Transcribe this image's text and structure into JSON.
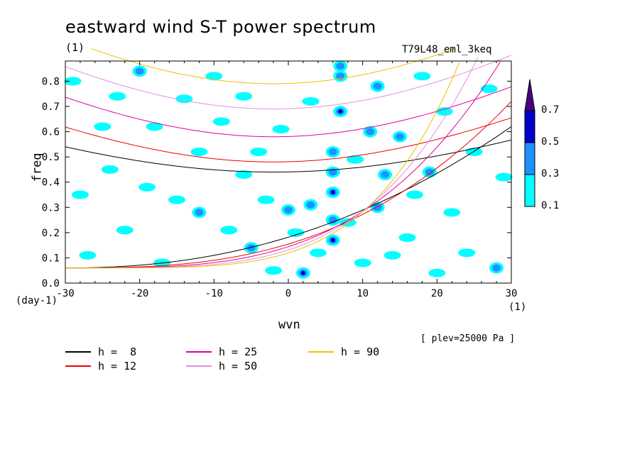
{
  "chart_data": {
    "type": "contour",
    "title": "eastward wind S-T power spectrum",
    "title_units": "(1)",
    "run_label": "T79L48_eml_3keq",
    "xlabel": "wvn",
    "ylabel": "freq",
    "x_units_left": "(day-1)",
    "x_units_right": "(1)",
    "level_note": "[ plev=25000 Pa ]",
    "xlim": [
      -30,
      30
    ],
    "ylim": [
      0,
      0.88
    ],
    "x_ticks": [
      -30,
      -20,
      -10,
      0,
      10,
      20,
      30
    ],
    "x_tick_labels": [
      "-30",
      "-20",
      "-10",
      "0",
      "10",
      "20",
      "30"
    ],
    "y_ticks": [
      0.0,
      0.1,
      0.2,
      0.3,
      0.4,
      0.5,
      0.6,
      0.7,
      0.8
    ],
    "y_tick_labels": [
      "0.0",
      "0.1",
      "0.2",
      "0.3",
      "0.4",
      "0.5",
      "0.6",
      "0.7",
      "0.8"
    ],
    "colorbar": {
      "levels": [
        "0.1",
        "0.3",
        "0.5",
        "0.7"
      ],
      "colors": [
        "#00ffff",
        "#1e90ff",
        "#0000c8",
        "#4b0082"
      ]
    },
    "dispersion_curves": [
      {
        "label": "h =  8",
        "color": "#000000",
        "x_min": 0.44,
        "x_center": -2,
        "right_branch_y30": 0.62
      },
      {
        "label": "h = 12",
        "color": "#ee0000",
        "x_min": 0.48,
        "x_center": -2,
        "right_branch_y30": 0.72
      },
      {
        "label": "h = 25",
        "color": "#e000a0",
        "x_min": 0.58,
        "x_center": -2,
        "right_branch_y30": 0.95
      },
      {
        "label": "h = 50",
        "color": "#e090e0",
        "x_min": 0.69,
        "x_center": -2,
        "right_branch_y30": 1.2
      },
      {
        "label": "h = 90",
        "color": "#eec000",
        "x_min": 0.79,
        "x_center": -2,
        "right_branch_y30": 1.5
      }
    ],
    "patches": [
      {
        "x": 2,
        "y": 0.04,
        "level": 2
      },
      {
        "x": 6,
        "y": 0.17,
        "level": 2
      },
      {
        "x": 6,
        "y": 0.25,
        "level": 1
      },
      {
        "x": 6,
        "y": 0.36,
        "level": 2
      },
      {
        "x": 6,
        "y": 0.44,
        "level": 1
      },
      {
        "x": 7,
        "y": 0.68,
        "level": 2
      },
      {
        "x": 7,
        "y": 0.82,
        "level": 1
      },
      {
        "x": 7,
        "y": 0.86,
        "level": 1
      },
      {
        "x": 6,
        "y": 0.52,
        "level": 1
      },
      {
        "x": -12,
        "y": 0.28,
        "level": 1
      },
      {
        "x": -20,
        "y": 0.84,
        "level": 1
      },
      {
        "x": 12,
        "y": 0.3,
        "level": 1
      },
      {
        "x": 13,
        "y": 0.43,
        "level": 1
      },
      {
        "x": 19,
        "y": 0.44,
        "level": 1
      },
      {
        "x": 15,
        "y": 0.58,
        "level": 1
      },
      {
        "x": 0,
        "y": 0.29,
        "level": 1
      },
      {
        "x": -5,
        "y": 0.14,
        "level": 1
      },
      {
        "x": 3,
        "y": 0.31,
        "level": 1
      },
      {
        "x": 11,
        "y": 0.6,
        "level": 1
      },
      {
        "x": 12,
        "y": 0.78,
        "level": 1
      },
      {
        "x": 28,
        "y": 0.06,
        "level": 1
      },
      {
        "x": -27,
        "y": 0.11,
        "level": 0
      },
      {
        "x": -24,
        "y": 0.45,
        "level": 0
      },
      {
        "x": -18,
        "y": 0.62,
        "level": 0
      },
      {
        "x": -14,
        "y": 0.73,
        "level": 0
      },
      {
        "x": -10,
        "y": 0.82,
        "level": 0
      },
      {
        "x": -8,
        "y": 0.21,
        "level": 0
      },
      {
        "x": -15,
        "y": 0.33,
        "level": 0
      },
      {
        "x": -22,
        "y": 0.21,
        "level": 0
      },
      {
        "x": -28,
        "y": 0.35,
        "level": 0
      },
      {
        "x": -4,
        "y": 0.52,
        "level": 0
      },
      {
        "x": -1,
        "y": 0.61,
        "level": 0
      },
      {
        "x": 3,
        "y": 0.72,
        "level": 0
      },
      {
        "x": 8,
        "y": 0.24,
        "level": 0
      },
      {
        "x": 4,
        "y": 0.12,
        "level": 0
      },
      {
        "x": -2,
        "y": 0.05,
        "level": 0
      },
      {
        "x": 10,
        "y": 0.08,
        "level": 0
      },
      {
        "x": 16,
        "y": 0.18,
        "level": 0
      },
      {
        "x": 22,
        "y": 0.28,
        "level": 0
      },
      {
        "x": 25,
        "y": 0.52,
        "level": 0
      },
      {
        "x": 21,
        "y": 0.68,
        "level": 0
      },
      {
        "x": 27,
        "y": 0.77,
        "level": 0
      },
      {
        "x": 24,
        "y": 0.12,
        "level": 0
      },
      {
        "x": 18,
        "y": 0.82,
        "level": 0
      },
      {
        "x": -6,
        "y": 0.43,
        "level": 0
      },
      {
        "x": -12,
        "y": 0.52,
        "level": 0
      },
      {
        "x": -19,
        "y": 0.38,
        "level": 0
      },
      {
        "x": -25,
        "y": 0.62,
        "level": 0
      },
      {
        "x": -29,
        "y": 0.8,
        "level": 0
      },
      {
        "x": -3,
        "y": 0.33,
        "level": 0
      },
      {
        "x": 1,
        "y": 0.2,
        "level": 0
      },
      {
        "x": 14,
        "y": 0.11,
        "level": 0
      },
      {
        "x": 20,
        "y": 0.04,
        "level": 0
      },
      {
        "x": -17,
        "y": 0.08,
        "level": 0
      },
      {
        "x": -9,
        "y": 0.64,
        "level": 0
      },
      {
        "x": 9,
        "y": 0.49,
        "level": 0
      },
      {
        "x": 17,
        "y": 0.35,
        "level": 0
      },
      {
        "x": -23,
        "y": 0.74,
        "level": 0
      },
      {
        "x": 29,
        "y": 0.42,
        "level": 0
      },
      {
        "x": -6,
        "y": 0.74,
        "level": 0
      }
    ]
  }
}
